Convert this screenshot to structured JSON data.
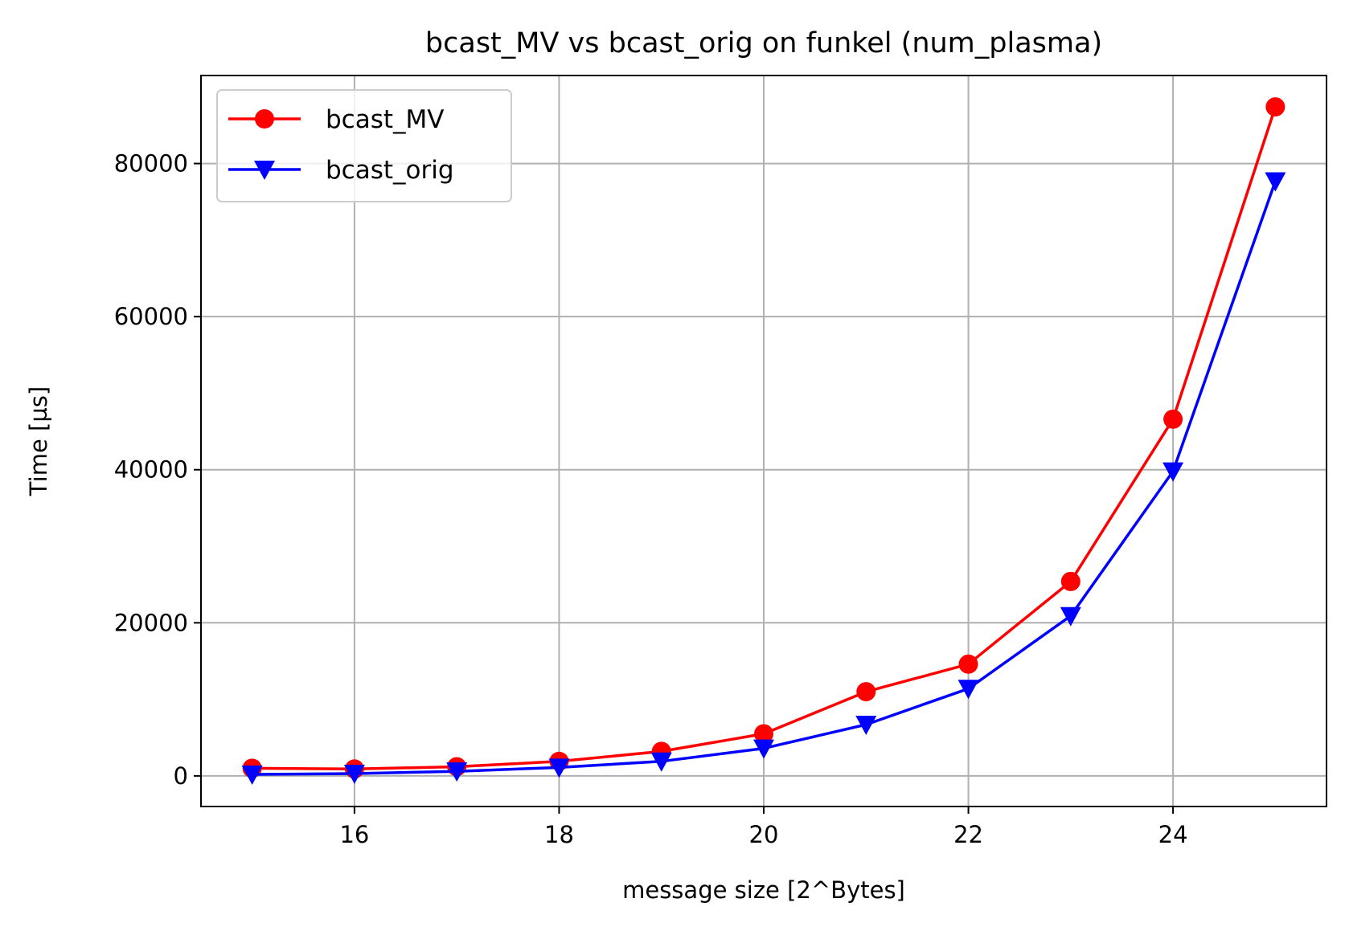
{
  "chart_data": {
    "type": "line",
    "title": "bcast_MV vs bcast_orig on funkel (num_plasma)",
    "xlabel": "message size [2^Bytes]",
    "ylabel": "Time [µs]",
    "xlim": [
      14.5,
      25.5
    ],
    "ylim": [
      -4000,
      91500
    ],
    "xticks": [
      16,
      18,
      20,
      22,
      24
    ],
    "yticks": [
      0,
      20000,
      40000,
      60000,
      80000
    ],
    "grid": true,
    "legend_position": "upper-left",
    "x": [
      15,
      16,
      17,
      18,
      19,
      20,
      21,
      22,
      23,
      24,
      25
    ],
    "series": [
      {
        "name": "bcast_MV",
        "color": "#ff0000",
        "marker": "circle",
        "values": [
          1000,
          900,
          1200,
          1900,
          3200,
          5500,
          11000,
          14600,
          25400,
          46600,
          87400
        ]
      },
      {
        "name": "bcast_orig",
        "color": "#0000ff",
        "marker": "triangle-down",
        "values": [
          200,
          300,
          600,
          1100,
          1900,
          3600,
          6700,
          11400,
          20900,
          39800,
          77700
        ]
      }
    ]
  }
}
